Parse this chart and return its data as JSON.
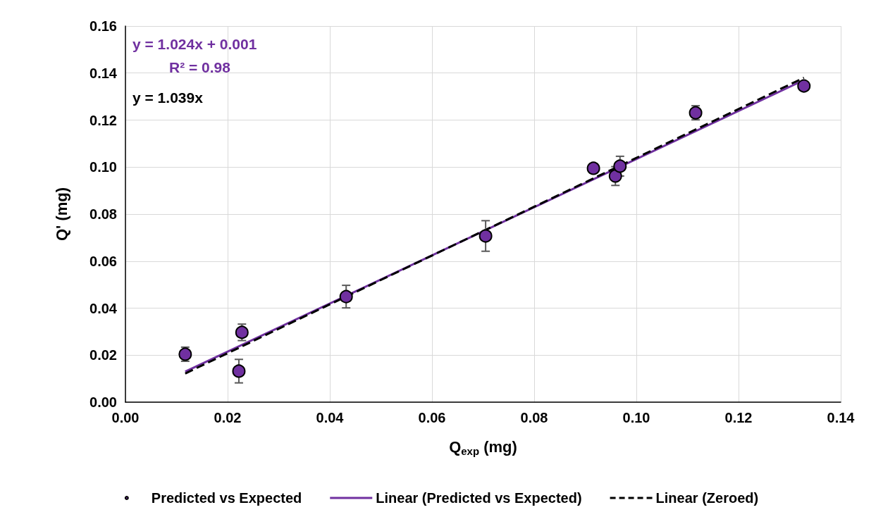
{
  "chart_data": {
    "type": "scatter",
    "xlabel": "Q$_{exp}$ (mg)",
    "ylabel": "Q' (mg)",
    "xlim": [
      0,
      0.14
    ],
    "ylim": [
      0,
      0.16
    ],
    "xticks": [
      {
        "value": 0,
        "label": "0.00"
      },
      {
        "value": 0.02,
        "label": "0.02"
      },
      {
        "value": 0.04,
        "label": "0.04"
      },
      {
        "value": 0.06,
        "label": "0.06"
      },
      {
        "value": 0.08,
        "label": "0.08"
      },
      {
        "value": 0.1,
        "label": "0.10"
      },
      {
        "value": 0.12,
        "label": "0.12"
      },
      {
        "value": 0.14,
        "label": "0.14"
      }
    ],
    "yticks": [
      {
        "value": 0,
        "label": "0.00"
      },
      {
        "value": 0.02,
        "label": "0.02"
      },
      {
        "value": 0.04,
        "label": "0.04"
      },
      {
        "value": 0.06,
        "label": "0.06"
      },
      {
        "value": 0.08,
        "label": "0.08"
      },
      {
        "value": 0.1,
        "label": "0.10"
      },
      {
        "value": 0.12,
        "label": "0.12"
      },
      {
        "value": 0.14,
        "label": "0.14"
      },
      {
        "value": 0.16,
        "label": "0.16"
      }
    ],
    "grid": true,
    "legend": "bottom",
    "annotations": [
      "y = 1.024x + 0.001",
      "R² = 0.98",
      "y = 1.039x"
    ],
    "series": [
      {
        "name": "Predicted vs Expected",
        "color": "#7030a0",
        "marker": "circle",
        "x": [
          0.0117,
          0.0222,
          0.0228,
          0.0432,
          0.0705,
          0.0916,
          0.0959,
          0.0968,
          0.1116,
          0.1328
        ],
        "values": [
          0.0204,
          0.0132,
          0.0297,
          0.0449,
          0.0707,
          0.0995,
          0.0962,
          0.1004,
          0.1231,
          0.1345
        ],
        "errors": [
          0.003,
          0.005,
          0.0035,
          0.0048,
          0.0065,
          0.002,
          0.004,
          0.0042,
          0.003,
          null
        ]
      },
      {
        "name": "Linear (Predicted vs Expected)",
        "type": "line",
        "color": "#7030a0",
        "line_style": "solid",
        "marker": "none",
        "x": [
          0.0117,
          0.1328
        ],
        "values": [
          0.013,
          0.137
        ]
      },
      {
        "name": "Linear (Zeroed)",
        "type": "line",
        "color": "#000000",
        "line_style": "dashed",
        "marker": "none",
        "x": [
          0.0117,
          0.1328
        ],
        "values": [
          0.0122,
          0.138
        ]
      }
    ]
  }
}
